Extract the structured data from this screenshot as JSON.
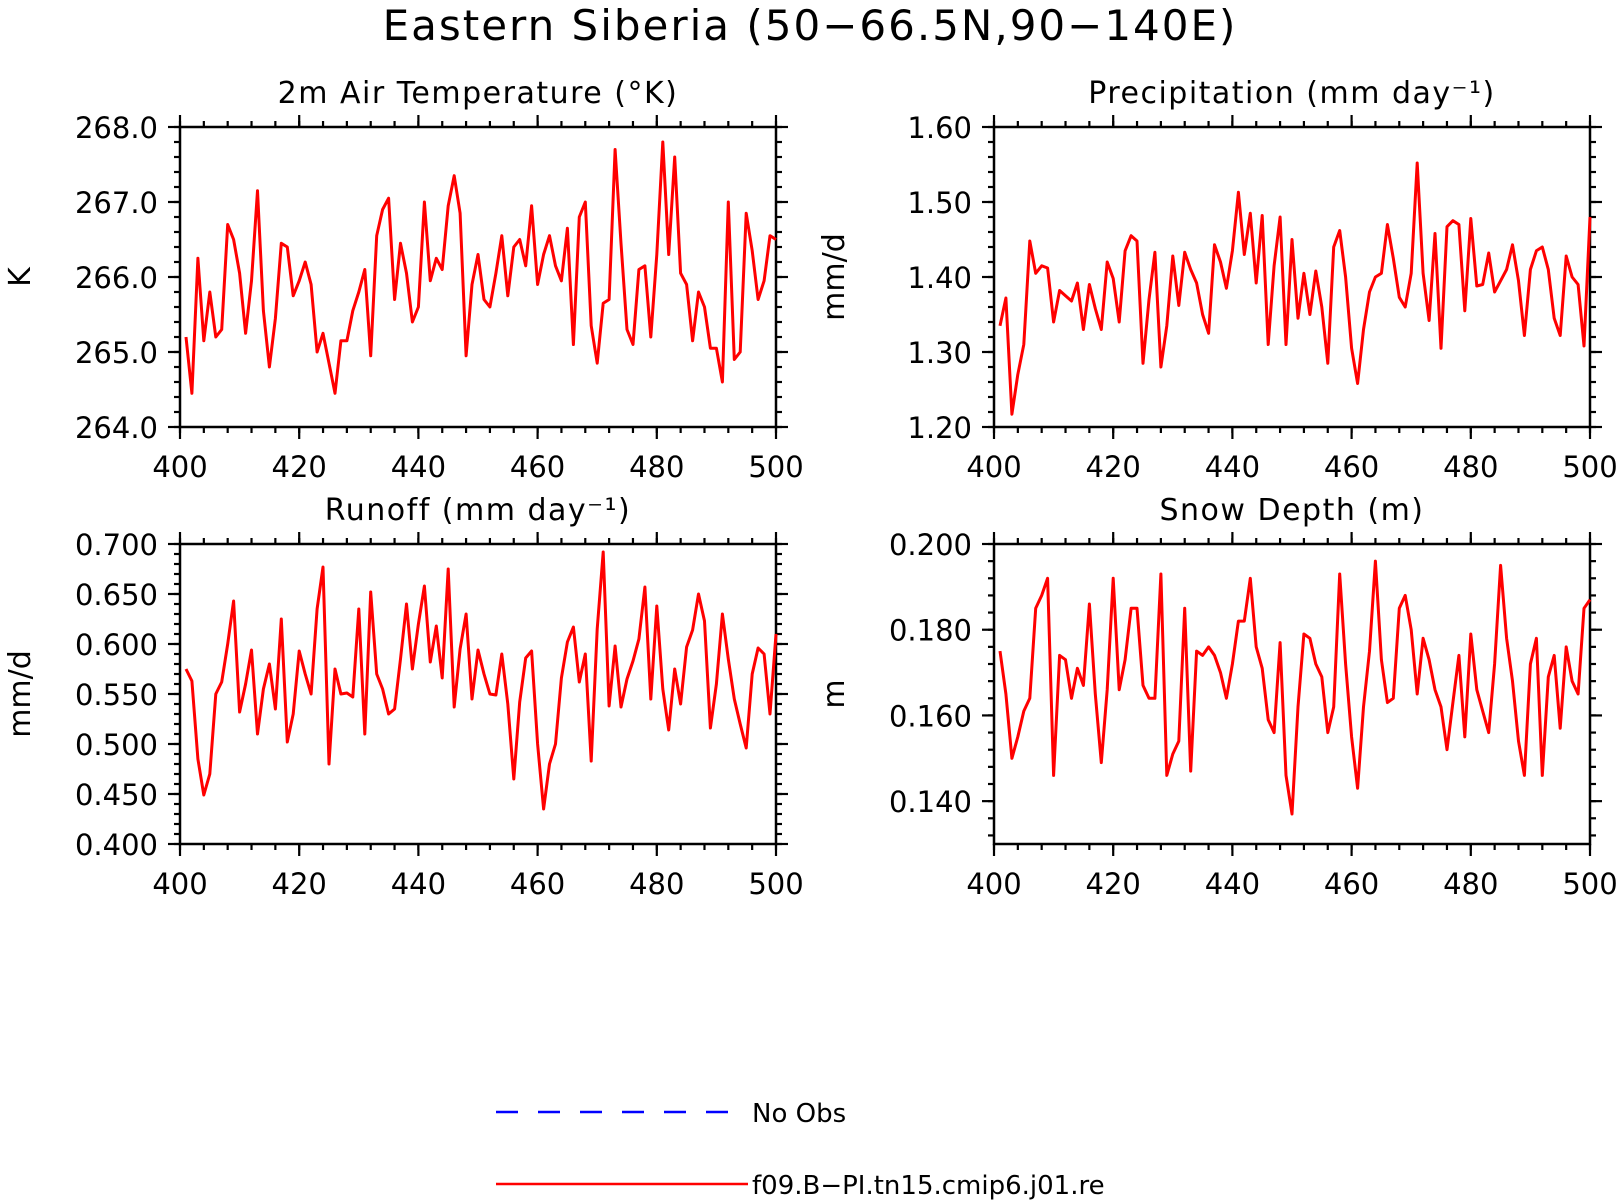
{
  "figure": {
    "title": "Eastern Siberia (50−66.5N,90−140E)"
  },
  "colors": {
    "model": "#ff0000",
    "obs": "#0000ff",
    "axes": "#000000"
  },
  "legend": {
    "items": [
      {
        "label": "No Obs",
        "color": "#0000ff",
        "style": "dashed"
      },
      {
        "label": "f09.B−PI.tn15.cmip6.j01.re",
        "color": "#ff0000",
        "style": "solid"
      }
    ],
    "placement": "bottom-center"
  },
  "chart_data": [
    {
      "type": "line",
      "title": "2m Air Temperature (°K)",
      "ylabel": "K",
      "xlim": [
        400,
        500
      ],
      "ylim": [
        264.0,
        268.0
      ],
      "xticks": [
        400,
        420,
        440,
        460,
        480,
        500
      ],
      "xtick_labels": [
        "400",
        "420",
        "440",
        "460",
        "480",
        "500"
      ],
      "yticks": [
        264.0,
        265.0,
        266.0,
        267.0,
        268.0
      ],
      "ytick_labels": [
        "264.0",
        "265.0",
        "266.0",
        "267.0",
        "268.0"
      ],
      "grid": false,
      "series": [
        {
          "name": "f09.B−PI.tn15.cmip6.j01.re",
          "x_start": 401,
          "x_step": 1,
          "values": [
            265.2,
            264.45,
            266.25,
            265.15,
            265.8,
            265.2,
            265.3,
            266.7,
            266.5,
            266.05,
            265.25,
            265.95,
            267.15,
            265.55,
            264.8,
            265.45,
            266.45,
            266.4,
            265.75,
            265.95,
            266.2,
            265.9,
            265.0,
            265.25,
            264.85,
            264.45,
            265.15,
            265.15,
            265.55,
            265.8,
            266.1,
            264.95,
            266.55,
            266.9,
            267.05,
            265.7,
            266.45,
            266.05,
            265.4,
            265.6,
            267.0,
            265.95,
            266.25,
            266.1,
            266.95,
            267.35,
            266.85,
            264.95,
            265.9,
            266.3,
            265.7,
            265.6,
            266.05,
            266.55,
            265.75,
            266.4,
            266.5,
            266.15,
            266.95,
            265.9,
            266.3,
            266.55,
            266.15,
            265.95,
            266.65,
            265.1,
            266.8,
            267.0,
            265.35,
            264.85,
            265.65,
            265.7,
            267.7,
            266.45,
            265.3,
            265.1,
            266.1,
            266.15,
            265.2,
            266.3,
            267.8,
            266.3,
            267.6,
            266.05,
            265.9,
            265.15,
            265.8,
            265.6,
            265.05,
            265.05,
            264.6,
            267.0,
            264.9,
            265.0,
            266.85,
            266.35,
            265.7,
            265.95,
            266.55,
            266.5
          ]
        }
      ]
    },
    {
      "type": "line",
      "title": "Precipitation (mm day⁻¹)",
      "ylabel": "mm/d",
      "xlim": [
        400,
        500
      ],
      "ylim": [
        1.2,
        1.6
      ],
      "xticks": [
        400,
        420,
        440,
        460,
        480,
        500
      ],
      "xtick_labels": [
        "400",
        "420",
        "440",
        "460",
        "480",
        "500"
      ],
      "yticks": [
        1.2,
        1.3,
        1.4,
        1.5,
        1.6
      ],
      "ytick_labels": [
        "1.20",
        "1.30",
        "1.40",
        "1.50",
        "1.60"
      ],
      "grid": false,
      "series": [
        {
          "name": "f09.B−PI.tn15.cmip6.j01.re",
          "x_start": 401,
          "x_step": 1,
          "values": [
            1.335,
            1.372,
            1.217,
            1.27,
            1.31,
            1.448,
            1.405,
            1.415,
            1.412,
            1.34,
            1.382,
            1.375,
            1.368,
            1.392,
            1.33,
            1.39,
            1.358,
            1.33,
            1.42,
            1.398,
            1.34,
            1.435,
            1.455,
            1.448,
            1.285,
            1.37,
            1.433,
            1.28,
            1.335,
            1.428,
            1.362,
            1.433,
            1.41,
            1.392,
            1.35,
            1.325,
            1.443,
            1.42,
            1.385,
            1.435,
            1.513,
            1.43,
            1.485,
            1.392,
            1.482,
            1.31,
            1.415,
            1.48,
            1.31,
            1.45,
            1.345,
            1.405,
            1.35,
            1.408,
            1.36,
            1.285,
            1.44,
            1.462,
            1.4,
            1.305,
            1.258,
            1.33,
            1.38,
            1.4,
            1.405,
            1.47,
            1.425,
            1.373,
            1.36,
            1.405,
            1.552,
            1.405,
            1.342,
            1.458,
            1.305,
            1.467,
            1.475,
            1.47,
            1.355,
            1.478,
            1.388,
            1.39,
            1.432,
            1.38,
            1.395,
            1.41,
            1.443,
            1.395,
            1.322,
            1.41,
            1.435,
            1.44,
            1.41,
            1.345,
            1.322,
            1.428,
            1.4,
            1.39,
            1.308,
            1.48
          ]
        }
      ]
    },
    {
      "type": "line",
      "title": "Runoff (mm day⁻¹)",
      "ylabel": "mm/d",
      "xlim": [
        400,
        500
      ],
      "ylim": [
        0.4,
        0.7
      ],
      "xticks": [
        400,
        420,
        440,
        460,
        480,
        500
      ],
      "xtick_labels": [
        "400",
        "420",
        "440",
        "460",
        "480",
        "500"
      ],
      "yticks": [
        0.4,
        0.45,
        0.5,
        0.55,
        0.6,
        0.65,
        0.7
      ],
      "ytick_labels": [
        "0.400",
        "0.450",
        "0.500",
        "0.550",
        "0.600",
        "0.650",
        "0.700"
      ],
      "grid": false,
      "series": [
        {
          "name": "f09.B−PI.tn15.cmip6.j01.re",
          "x_start": 401,
          "x_step": 1,
          "values": [
            0.575,
            0.563,
            0.485,
            0.449,
            0.47,
            0.55,
            0.562,
            0.6,
            0.643,
            0.532,
            0.56,
            0.594,
            0.51,
            0.555,
            0.58,
            0.535,
            0.625,
            0.502,
            0.53,
            0.593,
            0.57,
            0.55,
            0.635,
            0.677,
            0.48,
            0.575,
            0.55,
            0.551,
            0.547,
            0.635,
            0.51,
            0.652,
            0.57,
            0.555,
            0.53,
            0.535,
            0.585,
            0.64,
            0.575,
            0.62,
            0.658,
            0.582,
            0.618,
            0.566,
            0.675,
            0.537,
            0.595,
            0.63,
            0.545,
            0.594,
            0.57,
            0.55,
            0.549,
            0.59,
            0.54,
            0.465,
            0.542,
            0.586,
            0.593,
            0.5,
            0.435,
            0.48,
            0.5,
            0.566,
            0.602,
            0.617,
            0.562,
            0.59,
            0.483,
            0.615,
            0.692,
            0.538,
            0.598,
            0.537,
            0.565,
            0.583,
            0.605,
            0.657,
            0.545,
            0.638,
            0.555,
            0.514,
            0.575,
            0.54,
            0.597,
            0.614,
            0.65,
            0.623,
            0.516,
            0.56,
            0.63,
            0.585,
            0.545,
            0.52,
            0.496,
            0.57,
            0.596,
            0.59,
            0.53,
            0.61
          ]
        }
      ]
    },
    {
      "type": "line",
      "title": "Snow Depth (m)",
      "ylabel": "m",
      "xlim": [
        400,
        500
      ],
      "ylim": [
        0.13,
        0.2
      ],
      "xticks": [
        400,
        420,
        440,
        460,
        480,
        500
      ],
      "xtick_labels": [
        "400",
        "420",
        "440",
        "460",
        "480",
        "500"
      ],
      "yticks": [
        0.14,
        0.16,
        0.18,
        0.2
      ],
      "ytick_labels": [
        "0.140",
        "0.160",
        "0.180",
        "0.200"
      ],
      "grid": false,
      "series": [
        {
          "name": "f09.B−PI.tn15.cmip6.j01.re",
          "x_start": 401,
          "x_step": 1,
          "values": [
            0.175,
            0.165,
            0.15,
            0.155,
            0.161,
            0.164,
            0.185,
            0.188,
            0.192,
            0.146,
            0.174,
            0.173,
            0.164,
            0.171,
            0.167,
            0.186,
            0.165,
            0.149,
            0.166,
            0.192,
            0.166,
            0.173,
            0.185,
            0.185,
            0.167,
            0.164,
            0.164,
            0.193,
            0.146,
            0.151,
            0.154,
            0.185,
            0.147,
            0.175,
            0.174,
            0.176,
            0.174,
            0.17,
            0.164,
            0.172,
            0.182,
            0.182,
            0.192,
            0.176,
            0.171,
            0.159,
            0.156,
            0.177,
            0.146,
            0.137,
            0.162,
            0.179,
            0.178,
            0.172,
            0.169,
            0.156,
            0.162,
            0.193,
            0.172,
            0.155,
            0.143,
            0.162,
            0.175,
            0.196,
            0.173,
            0.163,
            0.164,
            0.185,
            0.188,
            0.18,
            0.165,
            0.178,
            0.173,
            0.166,
            0.162,
            0.152,
            0.163,
            0.174,
            0.155,
            0.179,
            0.166,
            0.161,
            0.156,
            0.172,
            0.195,
            0.178,
            0.168,
            0.154,
            0.146,
            0.172,
            0.178,
            0.146,
            0.169,
            0.174,
            0.157,
            0.176,
            0.168,
            0.165,
            0.185,
            0.187
          ]
        }
      ]
    }
  ]
}
